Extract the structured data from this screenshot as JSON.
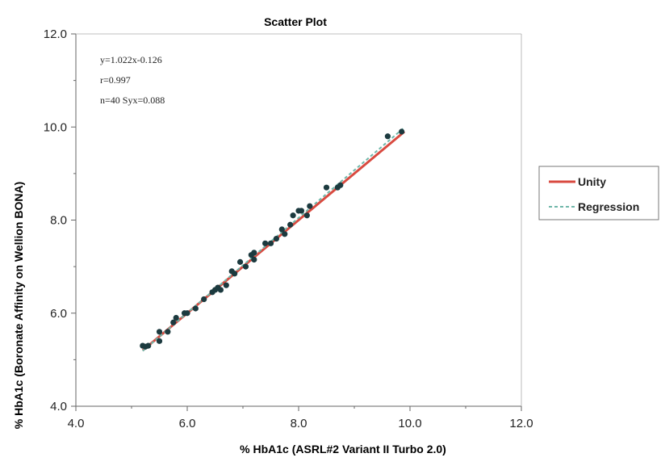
{
  "chart_data": {
    "type": "scatter",
    "title": "Scatter Plot",
    "xlabel": "% HbA1c (ASRL#2 Variant II Turbo 2.0)",
    "ylabel": "% HbA1c (Boronate Affinity on Wellion BONA)",
    "xlim": [
      4.0,
      12.0
    ],
    "ylim": [
      4.0,
      12.0
    ],
    "x_ticks": [
      "4.0",
      "6.0",
      "8.0",
      "10.0",
      "12.0"
    ],
    "y_ticks": [
      "4.0",
      "6.0",
      "8.0",
      "10.0",
      "12.0"
    ],
    "grid": false,
    "legend_position": "right",
    "annotations": [
      "y=1.022x-0.126",
      "r=0.997",
      "n=40 Syx=0.088"
    ],
    "points": [
      {
        "x": 5.2,
        "y": 5.3
      },
      {
        "x": 5.25,
        "y": 5.28
      },
      {
        "x": 5.5,
        "y": 5.6
      },
      {
        "x": 5.5,
        "y": 5.4
      },
      {
        "x": 5.65,
        "y": 5.6
      },
      {
        "x": 5.75,
        "y": 5.8
      },
      {
        "x": 5.8,
        "y": 5.9
      },
      {
        "x": 5.95,
        "y": 6.0
      },
      {
        "x": 6.0,
        "y": 6.0
      },
      {
        "x": 6.15,
        "y": 6.1
      },
      {
        "x": 6.45,
        "y": 6.45
      },
      {
        "x": 6.5,
        "y": 6.5
      },
      {
        "x": 6.55,
        "y": 6.55
      },
      {
        "x": 6.6,
        "y": 6.5
      },
      {
        "x": 6.7,
        "y": 6.6
      },
      {
        "x": 6.8,
        "y": 6.9
      },
      {
        "x": 6.85,
        "y": 6.85
      },
      {
        "x": 6.95,
        "y": 7.1
      },
      {
        "x": 7.05,
        "y": 7.0
      },
      {
        "x": 7.15,
        "y": 7.25
      },
      {
        "x": 7.2,
        "y": 7.3
      },
      {
        "x": 7.2,
        "y": 7.15
      },
      {
        "x": 7.4,
        "y": 7.5
      },
      {
        "x": 7.5,
        "y": 7.5
      },
      {
        "x": 7.6,
        "y": 7.6
      },
      {
        "x": 7.7,
        "y": 7.8
      },
      {
        "x": 7.75,
        "y": 7.7
      },
      {
        "x": 7.85,
        "y": 7.9
      },
      {
        "x": 7.9,
        "y": 8.1
      },
      {
        "x": 8.0,
        "y": 8.2
      },
      {
        "x": 8.05,
        "y": 8.2
      },
      {
        "x": 8.15,
        "y": 8.1
      },
      {
        "x": 8.2,
        "y": 8.3
      },
      {
        "x": 8.5,
        "y": 8.7
      },
      {
        "x": 8.7,
        "y": 8.7
      },
      {
        "x": 8.75,
        "y": 8.75
      },
      {
        "x": 9.6,
        "y": 9.8
      },
      {
        "x": 9.85,
        "y": 9.9
      },
      {
        "x": 5.3,
        "y": 5.3
      },
      {
        "x": 6.3,
        "y": 6.3
      }
    ],
    "series": [
      {
        "name": "Unity",
        "slope": 1.0,
        "intercept": 0.0,
        "x_range": [
          5.2,
          9.9
        ],
        "color": "#d94a40",
        "style": "solid"
      },
      {
        "name": "Regression",
        "slope": 1.022,
        "intercept": -0.126,
        "x_range": [
          5.2,
          9.9
        ],
        "color": "#6fb7a9",
        "style": "dashed"
      }
    ],
    "colors": {
      "point": "#1c3a3f",
      "axis": "#666666"
    }
  }
}
